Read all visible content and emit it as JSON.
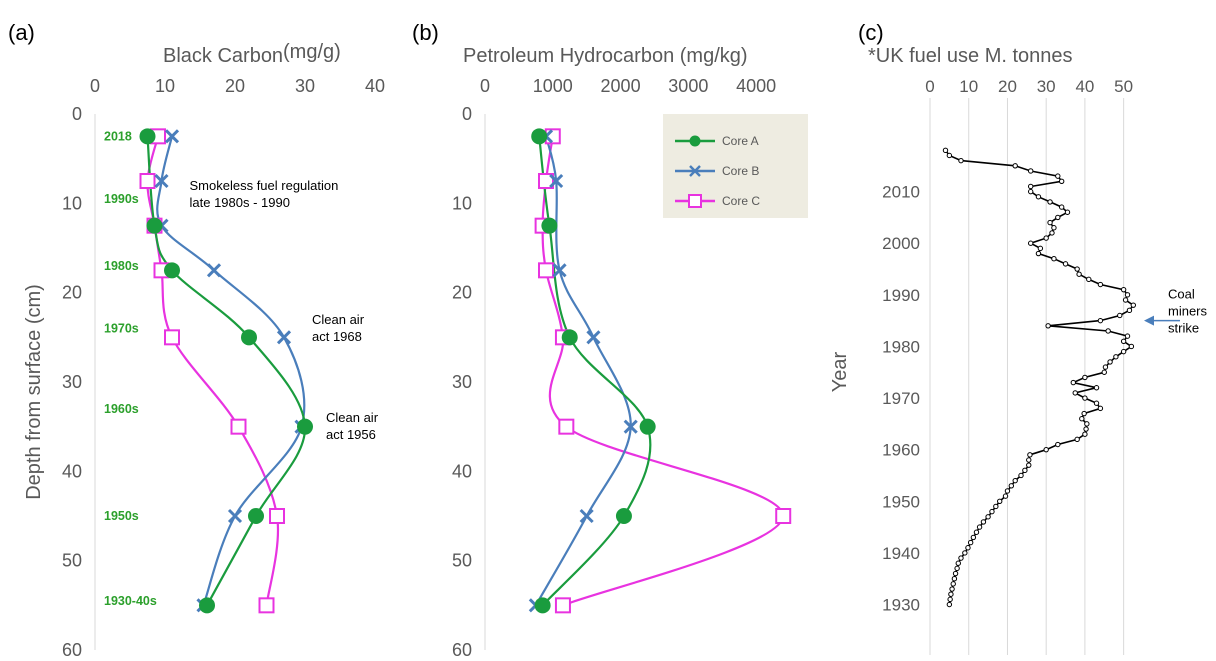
{
  "chart_data": [
    {
      "type": "line",
      "panel_label": "(a)",
      "title": "Black Carbon",
      "title_unit": "(mg/g)",
      "ylabel": "Depth from surface (cm)",
      "xlim": [
        0,
        40
      ],
      "ylim": [
        0,
        60
      ],
      "y_inverted": true,
      "x_axis_position": "top",
      "x_ticks": [
        "0",
        "10",
        "20",
        "30",
        "40"
      ],
      "y_ticks": [
        "0",
        "10",
        "20",
        "30",
        "40",
        "50",
        "60"
      ],
      "grid": false,
      "series": [
        {
          "name": "Core A",
          "color": "#1a9c3e",
          "marker": "circle",
          "points": [
            [
              7.5,
              2.5
            ],
            [
              8.5,
              12.5
            ],
            [
              11,
              17.5
            ],
            [
              22,
              25
            ],
            [
              30,
              35
            ],
            [
              23,
              45
            ],
            [
              16,
              55
            ]
          ]
        },
        {
          "name": "Core B",
          "color": "#4a7ebb",
          "marker": "x",
          "points": [
            [
              11,
              2.5
            ],
            [
              9.5,
              7.5
            ],
            [
              9.5,
              12.5
            ],
            [
              17,
              17.5
            ],
            [
              27,
              25
            ],
            [
              29.5,
              35
            ],
            [
              20,
              45
            ],
            [
              15.5,
              55
            ]
          ]
        },
        {
          "name": "Core C",
          "color": "#e833e0",
          "marker": "square",
          "points": [
            [
              9,
              2.5
            ],
            [
              7.5,
              7.5
            ],
            [
              8.5,
              12.5
            ],
            [
              9.5,
              17.5
            ],
            [
              11,
              25
            ],
            [
              20.5,
              35
            ],
            [
              26,
              45
            ],
            [
              24.5,
              55
            ]
          ]
        }
      ],
      "era_labels": [
        {
          "text": "2018",
          "depth": 2.5
        },
        {
          "text": "1990s",
          "depth": 9.5
        },
        {
          "text": "1980s",
          "depth": 17
        },
        {
          "text": "1970s",
          "depth": 24
        },
        {
          "text": "1960s",
          "depth": 33
        },
        {
          "text": "1950s",
          "depth": 45
        },
        {
          "text": "1930-40s",
          "depth": 54.5
        }
      ],
      "annotations": [
        {
          "lines": [
            "Smokeless fuel regulation",
            "late 1980s - 1990"
          ],
          "x": 13.5,
          "depth": 8.5
        },
        {
          "lines": [
            "Clean air",
            "act 1968"
          ],
          "x": 31,
          "depth": 23.5
        },
        {
          "lines": [
            "Clean air",
            "act 1956"
          ],
          "x": 33,
          "depth": 34.5
        }
      ]
    },
    {
      "type": "line",
      "panel_label": "(b)",
      "title": "Petroleum Hydrocarbon (mg/kg)",
      "xlim": [
        0,
        4500
      ],
      "ylim": [
        0,
        60
      ],
      "y_inverted": true,
      "x_axis_position": "top",
      "x_ticks": [
        "0",
        "1000",
        "2000",
        "3000",
        "4000"
      ],
      "y_ticks": [
        "0",
        "10",
        "20",
        "30",
        "40",
        "50",
        "60"
      ],
      "grid": false,
      "legend_position": "top-right",
      "series": [
        {
          "name": "Core A",
          "color": "#1a9c3e",
          "marker": "circle",
          "points": [
            [
              800,
              2.5
            ],
            [
              950,
              12.5
            ],
            [
              1250,
              25
            ],
            [
              2400,
              35
            ],
            [
              2050,
              45
            ],
            [
              850,
              55
            ]
          ]
        },
        {
          "name": "Core B",
          "color": "#4a7ebb",
          "marker": "x",
          "points": [
            [
              900,
              2.5
            ],
            [
              1050,
              7.5
            ],
            [
              1100,
              17.5
            ],
            [
              1600,
              25
            ],
            [
              2150,
              35
            ],
            [
              1500,
              45
            ],
            [
              750,
              55
            ]
          ]
        },
        {
          "name": "Core C",
          "color": "#e833e0",
          "marker": "square",
          "points": [
            [
              1000,
              2.5
            ],
            [
              900,
              7.5
            ],
            [
              850,
              12.5
            ],
            [
              900,
              17.5
            ],
            [
              1150,
              25
            ],
            [
              1200,
              35
            ],
            [
              4400,
              45
            ],
            [
              1150,
              55
            ]
          ]
        }
      ]
    },
    {
      "type": "line",
      "panel_label": "(c)",
      "title": "*UK fuel use M. tonnes",
      "ylabel": "Year",
      "xlim": [
        0,
        55
      ],
      "ylim": [
        1927,
        2020
      ],
      "x_axis_position": "top",
      "x_ticks": [
        "0",
        "10",
        "20",
        "30",
        "40",
        "50"
      ],
      "y_ticks": [
        "1930",
        "1940",
        "1950",
        "1960",
        "1970",
        "1980",
        "1990",
        "2000",
        "2010"
      ],
      "grid": "vertical",
      "series": [
        {
          "name": "UK fuel use",
          "color": "#000000",
          "marker": "small-circle",
          "points": [
            [
              5,
              1930
            ],
            [
              5.2,
              1931
            ],
            [
              5.4,
              1932
            ],
            [
              5.7,
              1933
            ],
            [
              6,
              1934
            ],
            [
              6.3,
              1935
            ],
            [
              6.6,
              1936
            ],
            [
              7,
              1937
            ],
            [
              7.3,
              1938
            ],
            [
              8,
              1939
            ],
            [
              9,
              1940
            ],
            [
              9.8,
              1941
            ],
            [
              10.5,
              1942
            ],
            [
              11.2,
              1943
            ],
            [
              12,
              1944
            ],
            [
              12.8,
              1945
            ],
            [
              13.8,
              1946
            ],
            [
              15,
              1947
            ],
            [
              16,
              1948
            ],
            [
              17,
              1949
            ],
            [
              18,
              1950
            ],
            [
              19.5,
              1951
            ],
            [
              20,
              1952
            ],
            [
              21,
              1953
            ],
            [
              22,
              1954
            ],
            [
              23.5,
              1955
            ],
            [
              24.5,
              1956
            ],
            [
              25.5,
              1957
            ],
            [
              25.5,
              1958
            ],
            [
              25.8,
              1959
            ],
            [
              30,
              1960
            ],
            [
              33,
              1961
            ],
            [
              38,
              1962
            ],
            [
              40,
              1963
            ],
            [
              40.3,
              1964
            ],
            [
              40.5,
              1965
            ],
            [
              39.2,
              1966
            ],
            [
              39.8,
              1967
            ],
            [
              44,
              1968
            ],
            [
              43,
              1969
            ],
            [
              40,
              1970
            ],
            [
              37.5,
              1971
            ],
            [
              43,
              1972
            ],
            [
              37,
              1973
            ],
            [
              40,
              1974
            ],
            [
              45,
              1975
            ],
            [
              45.3,
              1976
            ],
            [
              46.5,
              1977
            ],
            [
              48,
              1978
            ],
            [
              50,
              1979
            ],
            [
              52,
              1980
            ],
            [
              50,
              1981
            ],
            [
              51,
              1982
            ],
            [
              46,
              1983
            ],
            [
              30.5,
              1984
            ],
            [
              44,
              1985
            ],
            [
              49,
              1986
            ],
            [
              51.5,
              1987
            ],
            [
              52.5,
              1988
            ],
            [
              50.5,
              1989
            ],
            [
              51,
              1990
            ],
            [
              50,
              1991
            ],
            [
              44,
              1992
            ],
            [
              41,
              1993
            ],
            [
              38.5,
              1994
            ],
            [
              38,
              1995
            ],
            [
              35,
              1996
            ],
            [
              32,
              1997
            ],
            [
              28,
              1998
            ],
            [
              28.5,
              1999
            ],
            [
              26,
              2000
            ],
            [
              30,
              2001
            ],
            [
              31.5,
              2002
            ],
            [
              32,
              2003
            ],
            [
              31,
              2004
            ],
            [
              33,
              2005
            ],
            [
              35.5,
              2006
            ],
            [
              34,
              2007
            ],
            [
              31,
              2008
            ],
            [
              28,
              2009
            ],
            [
              26,
              2010
            ],
            [
              26,
              2011
            ],
            [
              34,
              2012
            ],
            [
              33,
              2013
            ],
            [
              26,
              2014
            ],
            [
              22,
              2015
            ],
            [
              8,
              2016
            ],
            [
              5,
              2017
            ],
            [
              4,
              2018
            ]
          ]
        }
      ],
      "annotations": [
        {
          "lines": [
            "Coal",
            "miners",
            "strike"
          ],
          "year": 1985
        }
      ]
    }
  ]
}
